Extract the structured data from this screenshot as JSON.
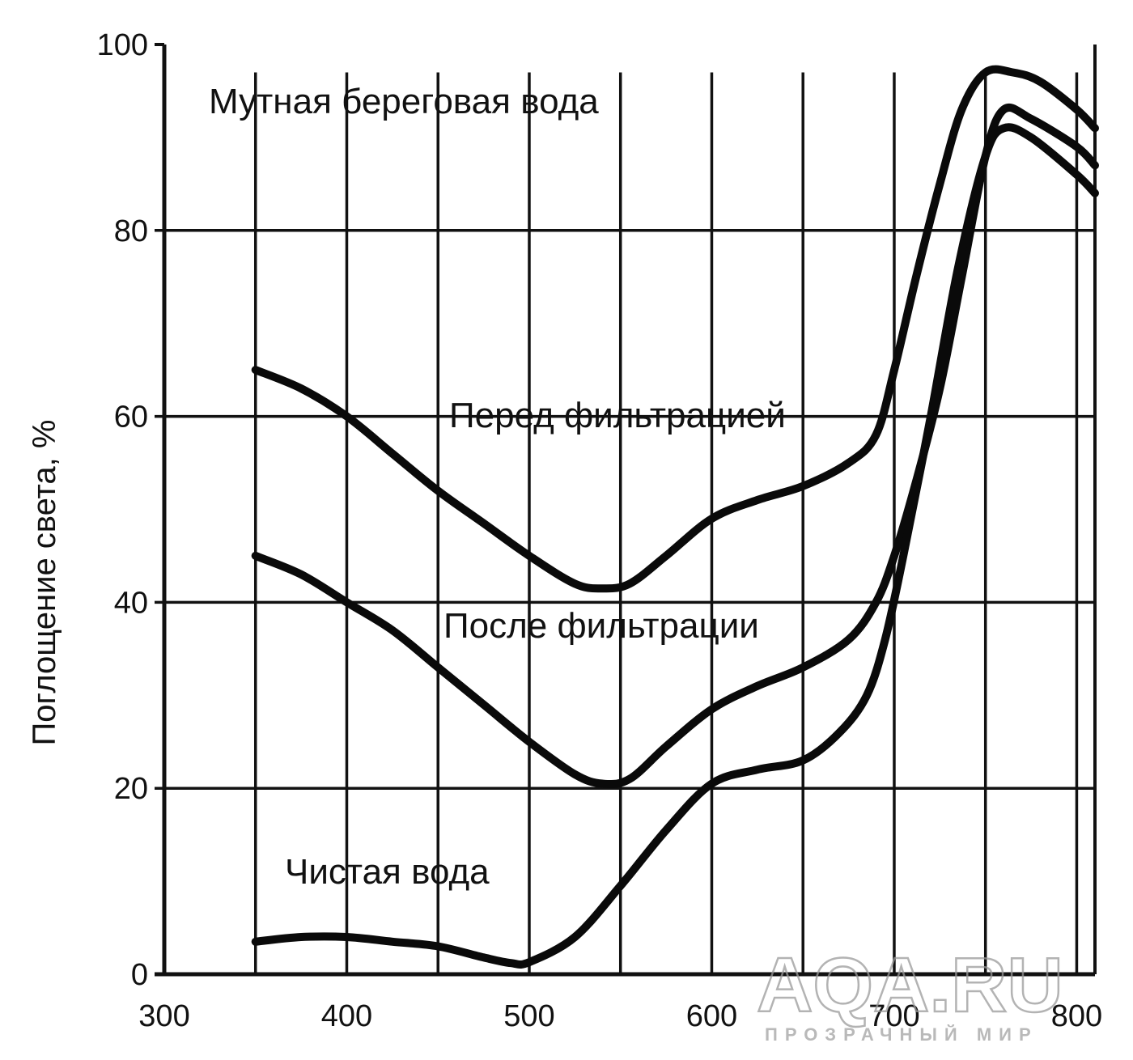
{
  "chart_data": {
    "type": "line",
    "title": "",
    "xlabel": "",
    "ylabel": "Поглощение света, %",
    "xlim": [
      300,
      810
    ],
    "ylim": [
      0,
      100
    ],
    "grid": true,
    "x_ticks": [
      300,
      400,
      500,
      600,
      700,
      800
    ],
    "y_ticks": [
      0,
      20,
      40,
      60,
      80,
      100
    ],
    "x_tick_labels": [
      "300",
      "400",
      "500",
      "600",
      "700",
      "800"
    ],
    "y_tick_labels": [
      "0",
      "20",
      "40",
      "60",
      "80",
      "100"
    ],
    "annotations": {
      "turbid": "Мутная береговая вода",
      "before": "Перед фильтрацией",
      "after": "После фильтрации",
      "clean": "Чистая вода"
    },
    "watermark": {
      "main": "AQA.RU",
      "sub": "ПРОЗРАЧНЫЙ МИР"
    },
    "series": [
      {
        "x": [
          350,
          375,
          400,
          425,
          450,
          475,
          500,
          525,
          540,
          555,
          575,
          600,
          625,
          650,
          675,
          690,
          700,
          712,
          725,
          737,
          750,
          765,
          780,
          800,
          810
        ],
        "values": [
          65,
          63,
          60,
          56,
          52,
          48.5,
          45,
          42,
          41.5,
          42,
          45,
          49,
          51,
          52.5,
          55,
          58,
          65,
          75,
          85,
          93,
          97,
          97,
          96,
          93,
          91
        ]
      },
      {
        "x": [
          350,
          375,
          400,
          425,
          450,
          475,
          500,
          525,
          540,
          555,
          575,
          600,
          625,
          650,
          675,
          690,
          700,
          712,
          725,
          737,
          750,
          760,
          775,
          800,
          810
        ],
        "values": [
          45,
          43,
          40,
          37,
          33,
          29,
          25,
          21.5,
          20.5,
          21,
          24.5,
          28.5,
          31,
          33,
          36,
          40,
          45,
          53,
          63,
          75,
          88,
          93,
          92,
          89,
          87
        ]
      },
      {
        "x": [
          350,
          375,
          400,
          425,
          450,
          475,
          490,
          500,
          525,
          550,
          575,
          600,
          625,
          650,
          670,
          685,
          695,
          705,
          720,
          735,
          750,
          760,
          775,
          800,
          810
        ],
        "values": [
          3.5,
          4,
          4,
          3.5,
          3,
          1.8,
          1.2,
          1.3,
          4,
          9.5,
          15.5,
          20.5,
          22,
          23,
          26,
          30,
          36,
          45,
          60,
          76,
          88,
          91,
          90,
          86,
          84
        ]
      }
    ]
  }
}
